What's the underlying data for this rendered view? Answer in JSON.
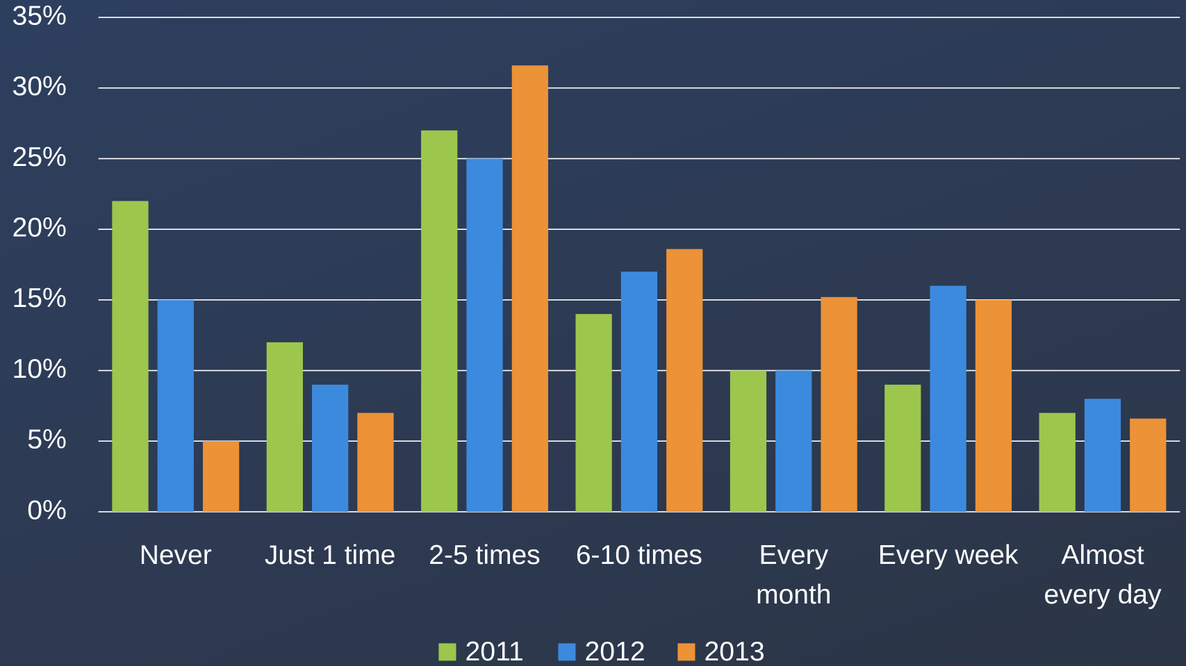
{
  "chart_data": {
    "type": "bar",
    "categories": [
      "Never",
      "Just 1 time",
      "2-5 times",
      "6-10 times",
      "Every\nmonth",
      "Every week",
      "Almost\nevery day"
    ],
    "series": [
      {
        "name": "2011",
        "color": "#9dc64d",
        "values": [
          22,
          12,
          27,
          14,
          10,
          9,
          7
        ]
      },
      {
        "name": "2012",
        "color": "#3c8ade",
        "values": [
          15,
          9,
          25,
          17,
          10,
          16,
          8
        ]
      },
      {
        "name": "2013",
        "color": "#ec9237",
        "values": [
          5,
          7,
          31.6,
          18.6,
          15.2,
          15,
          6.6
        ]
      }
    ],
    "ylim": [
      0,
      35
    ],
    "yticks": [
      {
        "value": 0,
        "label": "0%"
      },
      {
        "value": 5,
        "label": "5%"
      },
      {
        "value": 10,
        "label": "10%"
      },
      {
        "value": 15,
        "label": "15%"
      },
      {
        "value": 20,
        "label": "20%"
      },
      {
        "value": 25,
        "label": "25%"
      },
      {
        "value": 30,
        "label": "30%"
      },
      {
        "value": 35,
        "label": "35%"
      }
    ],
    "grid": true,
    "legend": "bottom"
  }
}
